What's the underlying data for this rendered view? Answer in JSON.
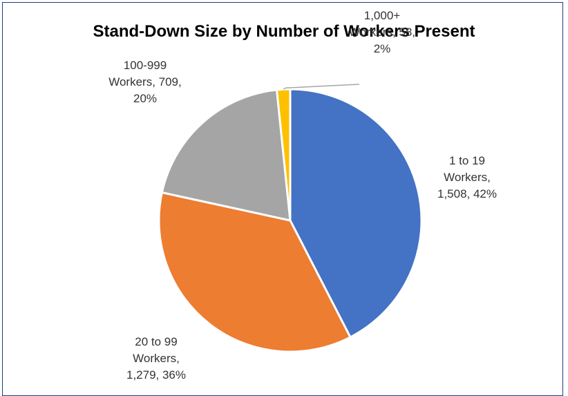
{
  "chart_data": {
    "type": "pie",
    "title": "Stand-Down Size by Number of Workers Present",
    "categories": [
      "1 to 19 Workers",
      "20 to 99 Workers",
      "100-999 Workers",
      "1,000+ Workers"
    ],
    "values": [
      1508,
      1279,
      709,
      58
    ],
    "percentages": [
      42,
      36,
      20,
      2
    ],
    "colors": [
      "#4472c4",
      "#ed7d31",
      "#a5a5a5",
      "#ffc000"
    ],
    "data_labels": [
      [
        "1 to 19",
        "Workers,",
        "1,508, 42%"
      ],
      [
        "20 to 99",
        "Workers,",
        "1,279, 36%"
      ],
      [
        "100-999",
        "Workers, 709,",
        "20%"
      ],
      [
        "1,000+",
        "Workers, 58,",
        "2%"
      ]
    ],
    "start_angle_deg": 0,
    "direction": "clockwise",
    "legend": "none"
  }
}
